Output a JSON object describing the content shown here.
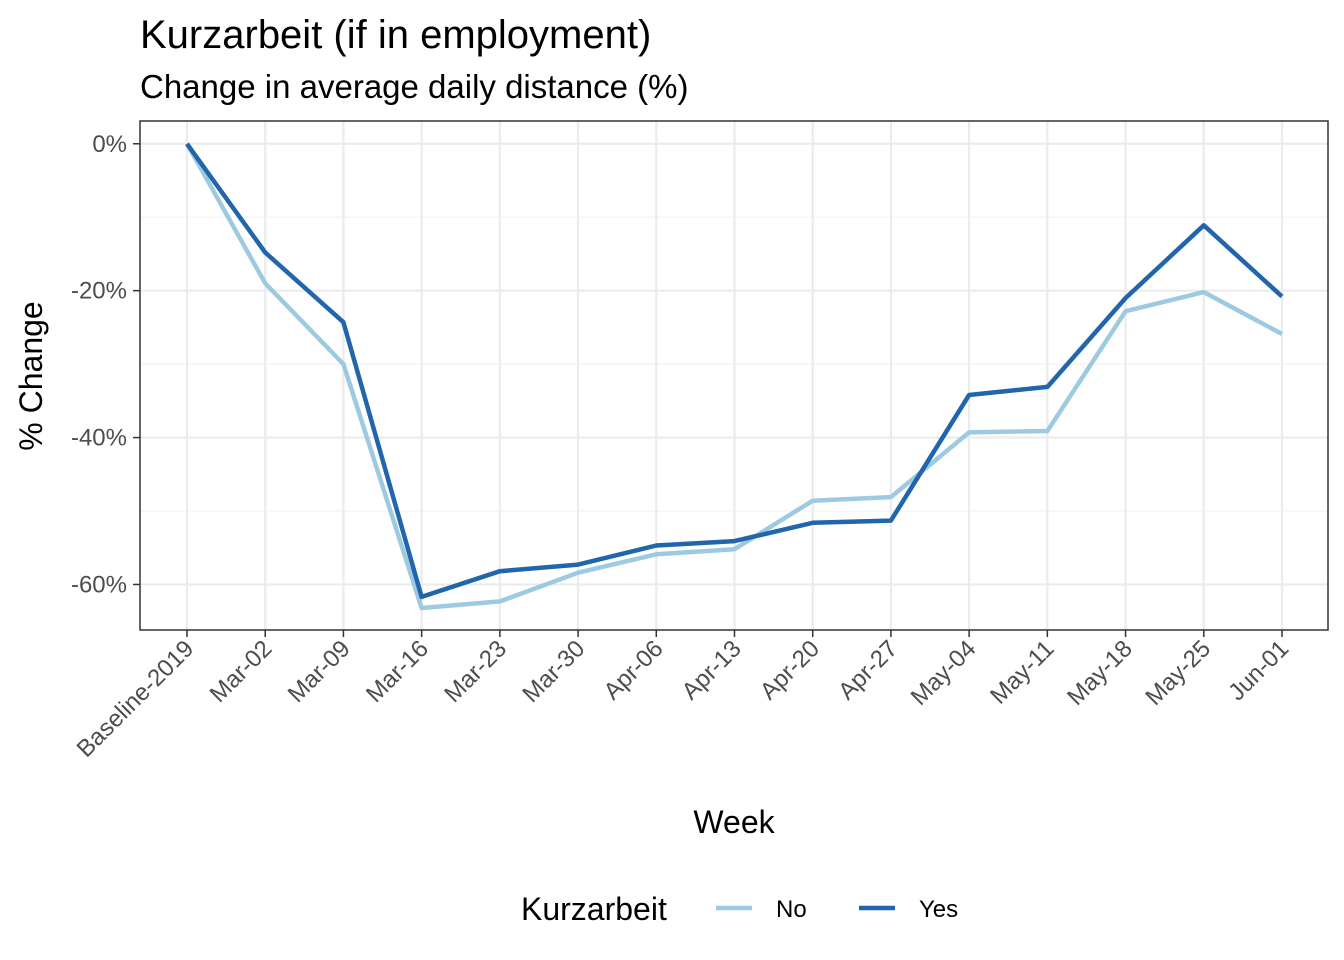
{
  "chart_data": {
    "type": "line",
    "title": "Kurzarbeit (if in employment)",
    "subtitle": "Change in average daily distance (%)",
    "xlabel": "Week",
    "ylabel": "% Change",
    "categories": [
      "Baseline-2019",
      "Mar-02",
      "Mar-09",
      "Mar-16",
      "Mar-23",
      "Mar-30",
      "Apr-06",
      "Apr-13",
      "Apr-20",
      "Apr-27",
      "May-04",
      "May-11",
      "May-18",
      "May-25",
      "Jun-01"
    ],
    "ylim": [
      -66.2,
      3.1
    ],
    "yticks": [
      0,
      -20,
      -40,
      -60
    ],
    "ytick_labels": [
      "0%",
      "-20%",
      "-40%",
      "-60%"
    ],
    "grid": true,
    "legend": {
      "title": "Kurzarbeit",
      "position": "bottom"
    },
    "series": [
      {
        "name": "No",
        "color": "#9ecae1",
        "values": [
          0,
          -19.0,
          -30.0,
          -63.2,
          -62.3,
          -58.4,
          -55.9,
          -55.2,
          -48.6,
          -48.1,
          -39.3,
          -39.1,
          -22.8,
          -20.2,
          -25.9
        ]
      },
      {
        "name": "Yes",
        "color": "#2166ac",
        "values": [
          0,
          -14.8,
          -24.3,
          -61.7,
          -58.2,
          -57.3,
          -54.7,
          -54.1,
          -51.6,
          -51.3,
          -34.2,
          -33.1,
          -21.0,
          -11.1,
          -20.8
        ]
      }
    ]
  }
}
